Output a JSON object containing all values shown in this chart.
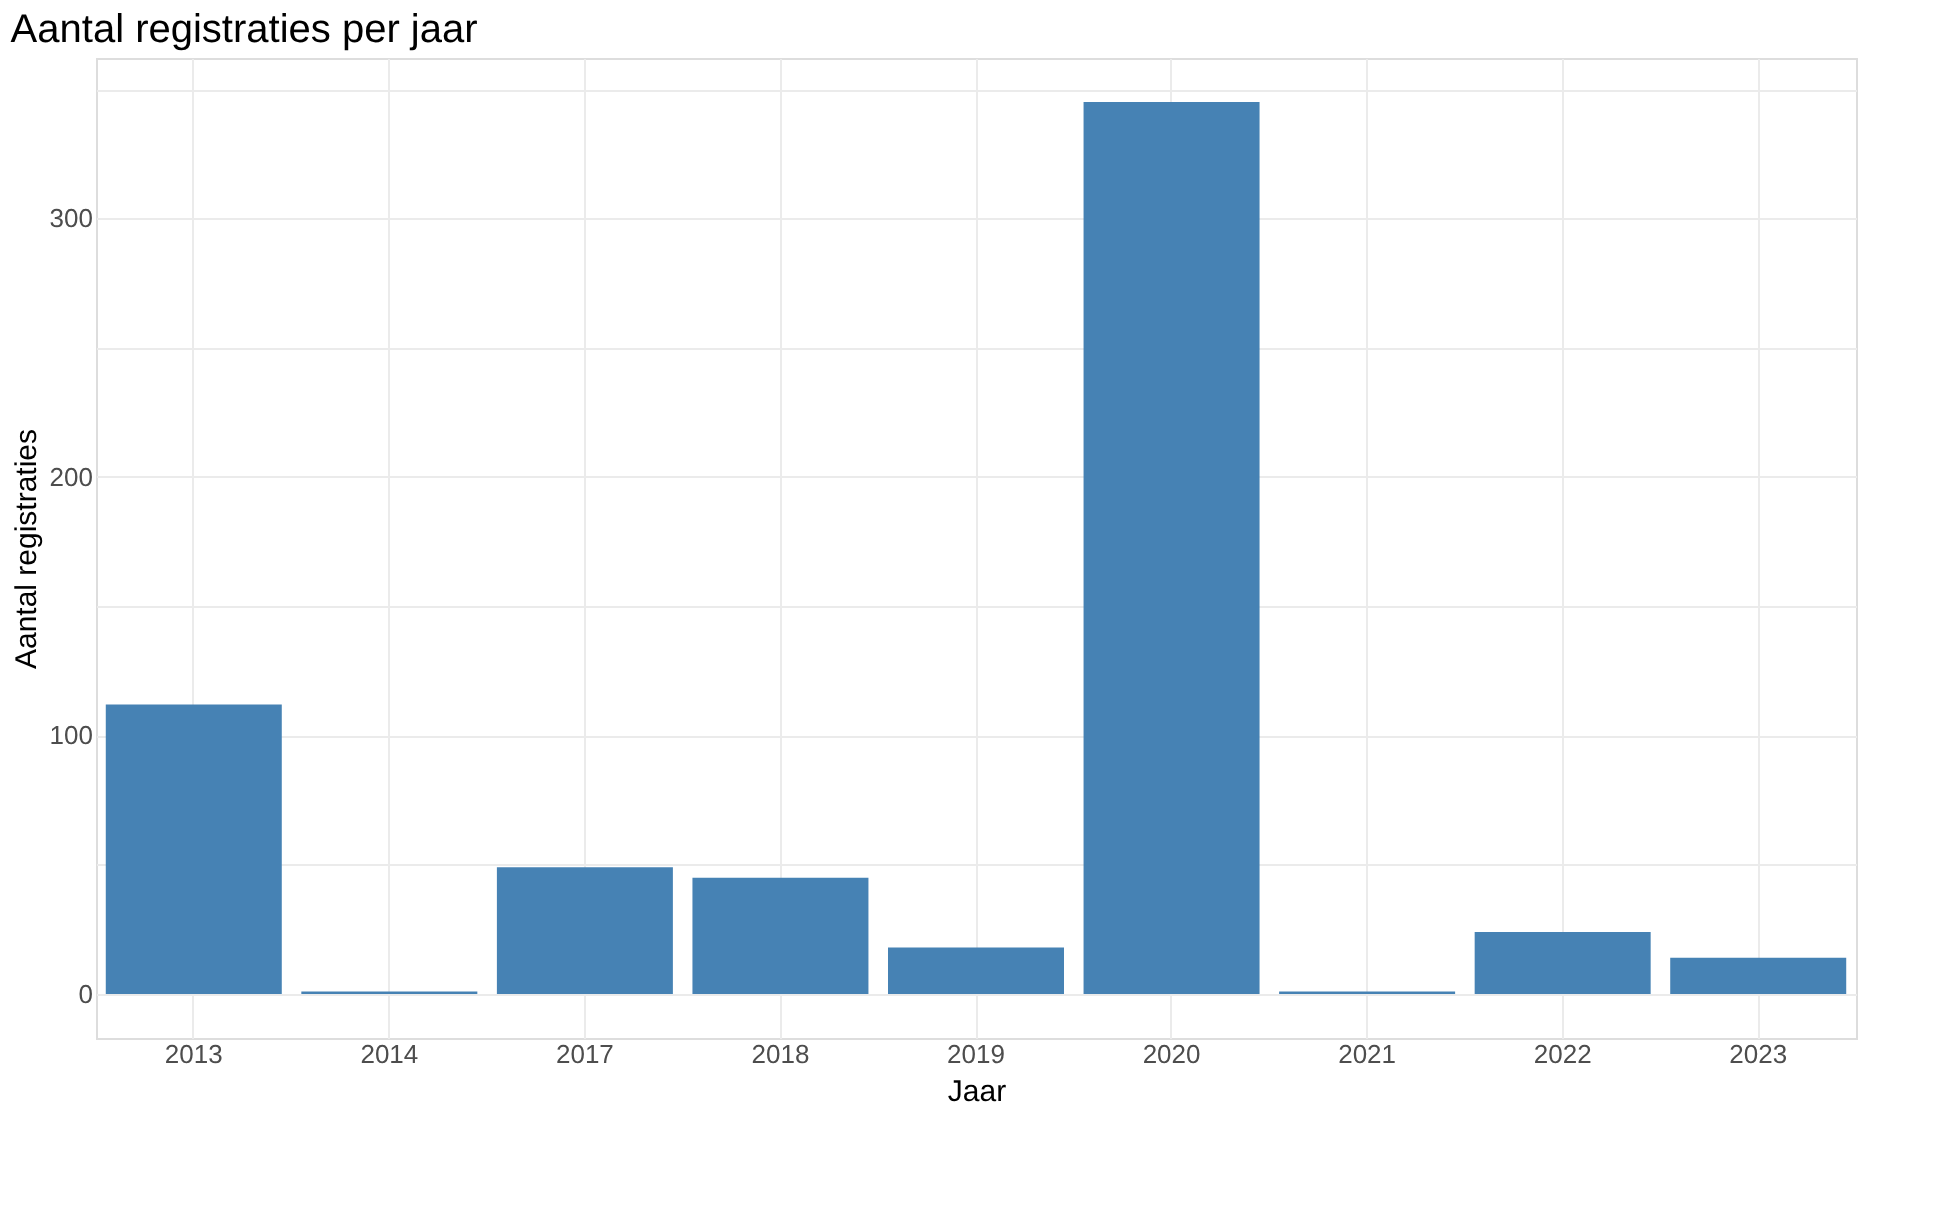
{
  "chart_data": {
    "type": "bar",
    "title": "Aantal registraties per jaar",
    "xlabel": "Jaar",
    "ylabel": "Aantal registraties",
    "categories": [
      "2013",
      "2014",
      "2017",
      "2018",
      "2019",
      "2020",
      "2021",
      "2022",
      "2023"
    ],
    "values": [
      112,
      1,
      49,
      45,
      18,
      345,
      1,
      24,
      14
    ],
    "color": "#4682b4",
    "ylim": [
      -17,
      362
    ],
    "yticks": [
      0,
      {
        "value": 50,
        "label": null
      },
      100,
      {
        "value": 150,
        "label": null
      },
      200,
      {
        "value": 250,
        "label": null
      },
      300,
      {
        "value": 350,
        "label": null
      }
    ],
    "grid": true
  }
}
